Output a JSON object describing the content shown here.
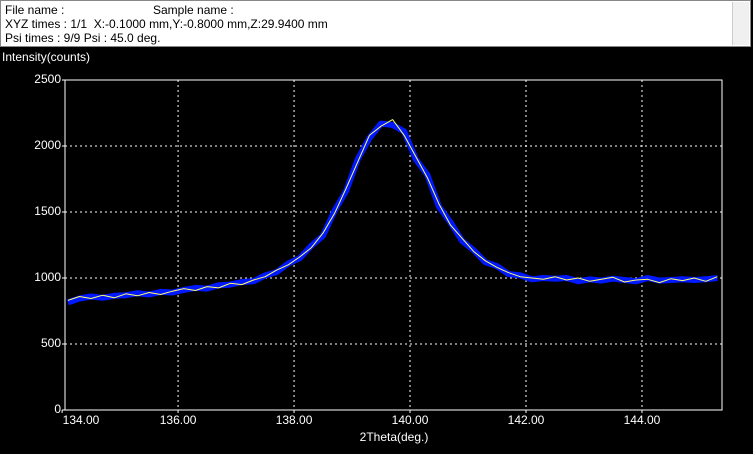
{
  "header": {
    "file_name": "File name :",
    "sample_name": "Sample name :",
    "xyz": "XYZ times : 1/1  X:-0.1000 mm,Y:-0.8000 mm,Z:29.9400 mm",
    "psi": "Psi times : 9/9 Psi : 45.0 deg."
  },
  "chart_data": {
    "type": "line",
    "y_label": "Intensity(counts)",
    "x_label": "2Theta(deg.)",
    "x": [
      134.1,
      134.3,
      134.5,
      134.7,
      134.9,
      135.1,
      135.3,
      135.5,
      135.7,
      135.9,
      136.1,
      136.3,
      136.5,
      136.7,
      136.9,
      137.1,
      137.3,
      137.5,
      137.7,
      137.9,
      138.1,
      138.3,
      138.5,
      138.7,
      138.9,
      139.1,
      139.3,
      139.5,
      139.7,
      139.9,
      140.1,
      140.3,
      140.5,
      140.7,
      140.9,
      141.1,
      141.3,
      141.5,
      141.7,
      141.9,
      142.1,
      142.3,
      142.5,
      142.7,
      142.9,
      143.1,
      143.3,
      143.5,
      143.7,
      143.9,
      144.1,
      144.3,
      144.5,
      144.7,
      144.9,
      145.1,
      145.3
    ],
    "series": [
      {
        "color": "#0018ff",
        "values": [
          815,
          845,
          860,
          850,
          865,
          870,
          885,
          875,
          895,
          890,
          910,
          925,
          920,
          945,
          950,
          970,
          975,
          1020,
          1045,
          1110,
          1150,
          1245,
          1320,
          1510,
          1660,
          1900,
          2060,
          2170,
          2160,
          2110,
          1900,
          1780,
          1540,
          1420,
          1280,
          1210,
          1120,
          1090,
          1030,
          1020,
          990,
          1000,
          995,
          1000,
          975,
          990,
          980,
          995,
          985,
          975,
          1000,
          980,
          985,
          990,
          985,
          990,
          1000
        ]
      },
      {
        "color": "#ffff66",
        "values": [
          830,
          860,
          845,
          870,
          850,
          880,
          865,
          890,
          875,
          900,
          920,
          905,
          935,
          925,
          960,
          950,
          985,
          1010,
          1060,
          1100,
          1160,
          1230,
          1340,
          1490,
          1680,
          1880,
          2080,
          2150,
          2200,
          2080,
          1920,
          1760,
          1560,
          1400,
          1300,
          1200,
          1130,
          1080,
          1040,
          1010,
          1000,
          990,
          1010,
          985,
          1000,
          975,
          990,
          1005,
          970,
          985,
          990,
          965,
          995,
          980,
          1000,
          975,
          1010
        ]
      }
    ],
    "xlim": [
      134.05,
      145.38
    ],
    "xticks": [
      {
        "value": 134,
        "label": "134.00"
      },
      {
        "value": 136,
        "label": "136.00"
      },
      {
        "value": 138,
        "label": "138.00"
      },
      {
        "value": 140,
        "label": "140.00"
      },
      {
        "value": 142,
        "label": "142.00"
      },
      {
        "value": 144,
        "label": "144.00"
      }
    ],
    "ylim": [
      0,
      2500
    ],
    "yticks": [
      0,
      500,
      1000,
      1500,
      2000,
      2500
    ],
    "grid": true
  }
}
